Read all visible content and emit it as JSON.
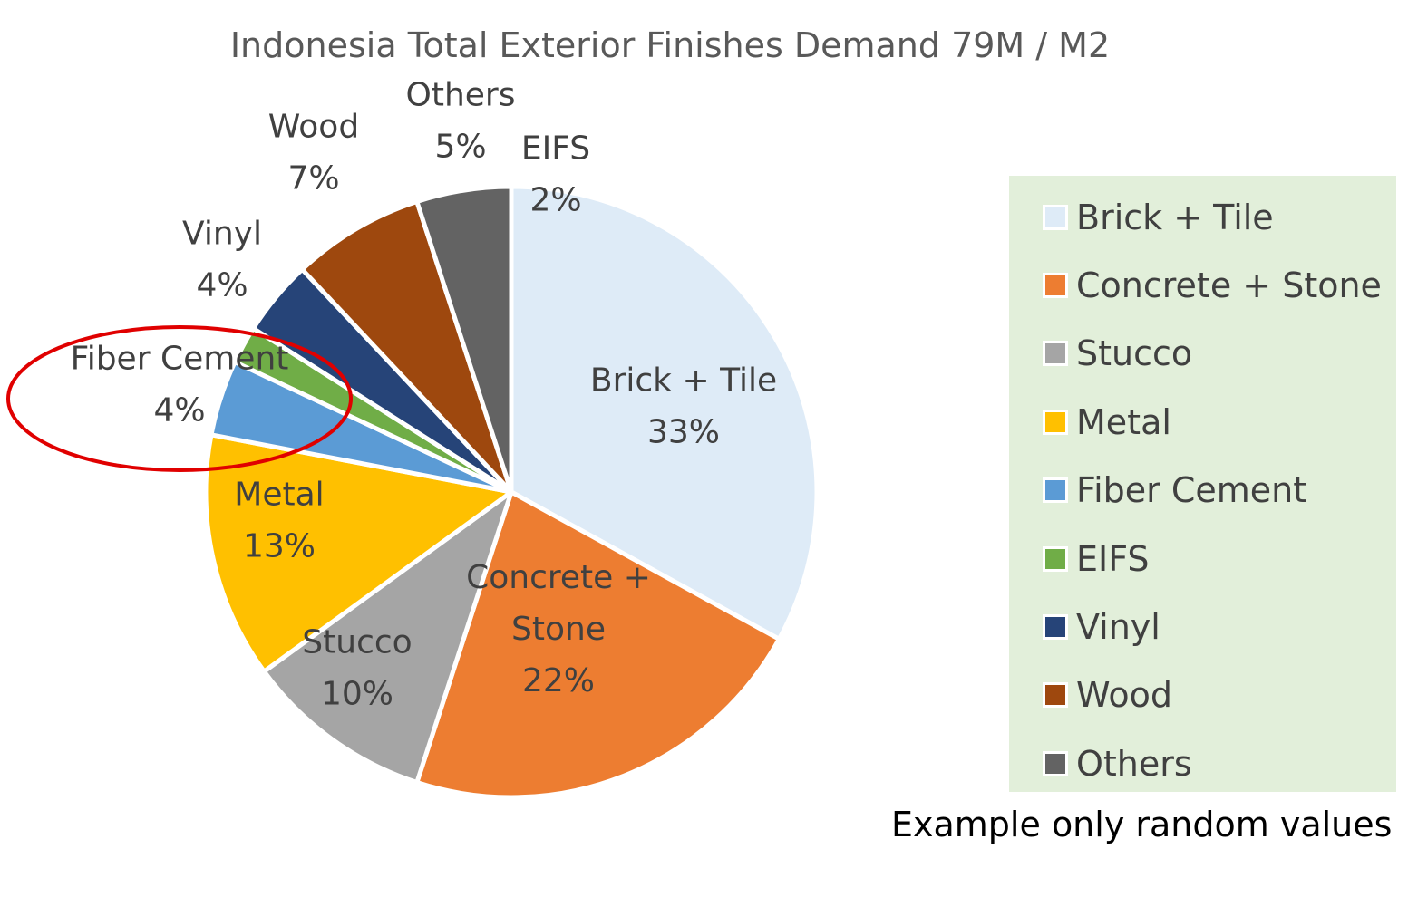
{
  "chart_data": {
    "type": "pie",
    "title": "Indonesia Total Exterior Finishes Demand 79M / M2",
    "slices": [
      {
        "name": "Brick + Tile",
        "value": 33,
        "label_lines": [
          "Brick + Tile",
          "33%"
        ],
        "color": "#deebf7"
      },
      {
        "name": "Concrete + Stone",
        "value": 22,
        "label_lines": [
          "Concrete +",
          "Stone",
          "22%"
        ],
        "color": "#ed7d31"
      },
      {
        "name": "Stucco",
        "value": 10,
        "label_lines": [
          "Stucco",
          "10%"
        ],
        "color": "#a5a5a5"
      },
      {
        "name": "Metal",
        "value": 13,
        "label_lines": [
          "Metal",
          "13%"
        ],
        "color": "#ffc000"
      },
      {
        "name": "Fiber Cement",
        "value": 4,
        "label_lines": [
          "Fiber Cement",
          "4%"
        ],
        "color": "#5b9bd5"
      },
      {
        "name": "EIFS",
        "value": 2,
        "label_lines": [
          "EIFS",
          "2%"
        ],
        "color": "#70ad47"
      },
      {
        "name": "Vinyl",
        "value": 4,
        "label_lines": [
          "Vinyl",
          "4%"
        ],
        "color": "#264478"
      },
      {
        "name": "Wood",
        "value": 7,
        "label_lines": [
          "Wood",
          "7%"
        ],
        "color": "#9e480e"
      },
      {
        "name": "Others",
        "value": 5,
        "label_lines": [
          "Others",
          "5%"
        ],
        "color": "#636363"
      }
    ],
    "legend": {
      "placement": "right",
      "background": "#e2efda",
      "items": [
        {
          "label": "Brick + Tile",
          "color": "#deebf7"
        },
        {
          "label": "Concrete + Stone",
          "color": "#ed7d31"
        },
        {
          "label": "Stucco",
          "color": "#a5a5a5"
        },
        {
          "label": "Metal",
          "color": "#ffc000"
        },
        {
          "label": "Fiber Cement",
          "color": "#5b9bd5"
        },
        {
          "label": "EIFS",
          "color": "#70ad47"
        },
        {
          "label": "Vinyl",
          "color": "#264478"
        },
        {
          "label": "Wood",
          "color": "#9e480e"
        },
        {
          "label": "Others",
          "color": "#636363"
        }
      ]
    },
    "highlight": {
      "target": "Fiber Cement",
      "shape": "ellipse",
      "color": "#e00000"
    }
  },
  "footnote": "Example only random values"
}
